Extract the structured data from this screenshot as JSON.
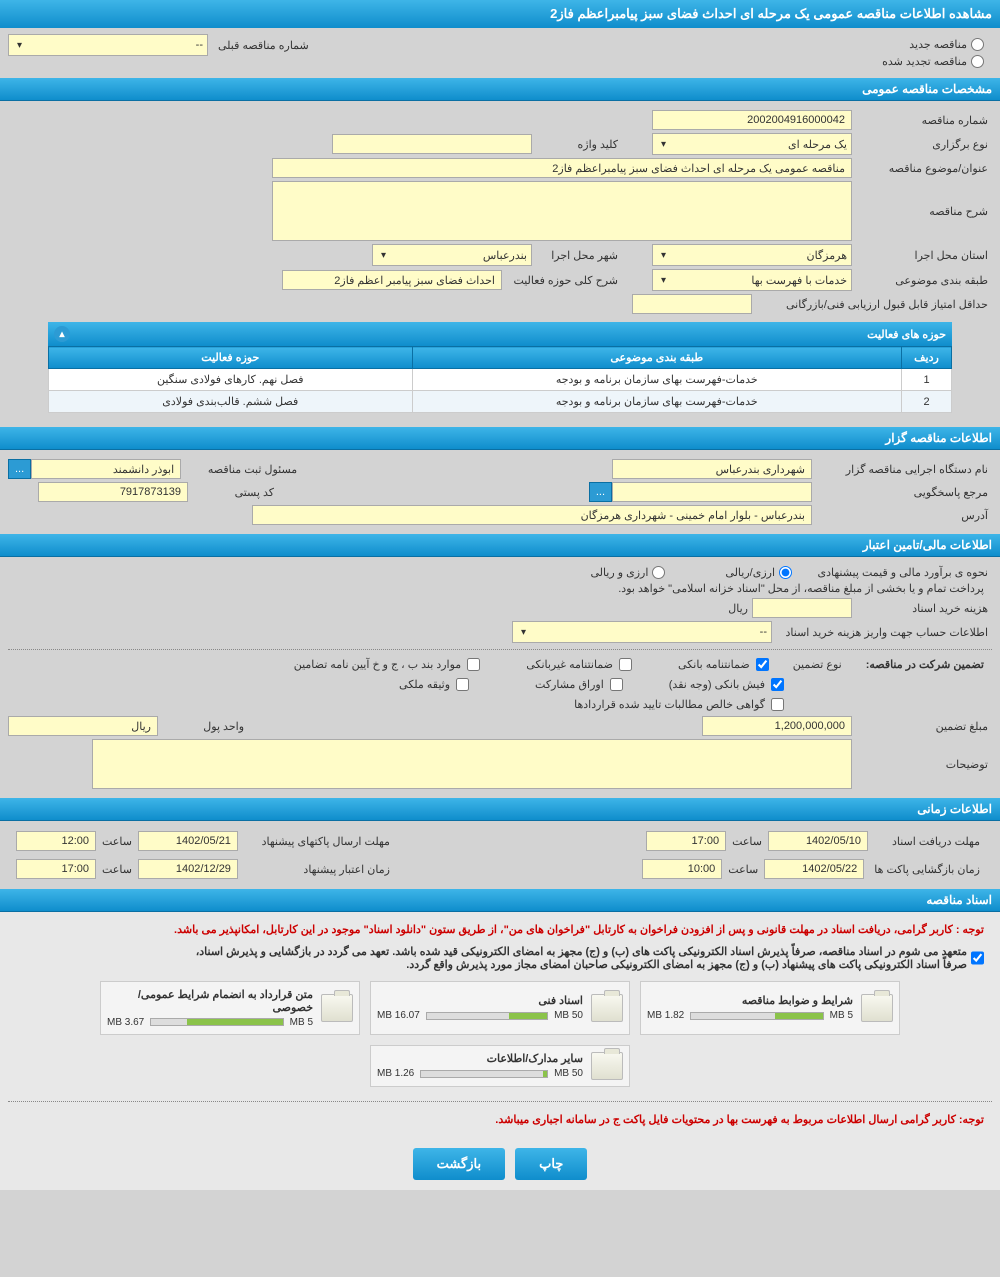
{
  "page_title": "مشاهده اطلاعات مناقصه عمومی یک مرحله ای احداث فضای سبز پیامبراعظم فاز2",
  "radio": {
    "new": "مناقصه جدید",
    "renewed": "مناقصه تجدید شده"
  },
  "prev_num_label": "شماره مناقصه قبلی",
  "prev_num_value": "--",
  "sections": {
    "general": "مشخصات مناقصه عمومی",
    "organizer": "اطلاعات مناقصه گزار",
    "financial": "اطلاعات مالی/تامین اعتبار",
    "time": "اطلاعات زمانی",
    "docs": "اسناد مناقصه"
  },
  "general": {
    "tender_no_label": "شماره مناقصه",
    "tender_no": "2002004916000042",
    "hold_type_label": "نوع برگزاری",
    "hold_type": "یک مرحله ای",
    "keyword_label": "کلید واژه",
    "keyword": "",
    "title_label": "عنوان/موضوع مناقصه",
    "title": "مناقصه عمومی یک مرحله ای احداث فضای سبز پیامبراعظم فاز2",
    "desc_label": "شرح مناقصه",
    "desc": "",
    "province_label": "استان محل اجرا",
    "province": "هرمزگان",
    "city_label": "شهر محل اجرا",
    "city": "بندرعباس",
    "category_label": "طبقه بندی موضوعی",
    "category": "خدمات با فهرست بها",
    "activity_desc_label": "شرح کلی حوزه فعالیت",
    "activity_desc": "احداث فضای سبز پیامبر اعظم فاز2",
    "min_score_label": "حداقل امتیاز قابل قبول ارزیابی فنی/بازرگانی",
    "min_score": ""
  },
  "activity_table": {
    "title": "حوزه های فعالیت",
    "cols": [
      "ردیف",
      "طبقه بندی موضوعی",
      "حوزه فعالیت"
    ],
    "rows": [
      [
        "1",
        "خدمات-فهرست بهای سازمان برنامه و بودجه",
        "فصل نهم. کارهای فولادی سنگین"
      ],
      [
        "2",
        "خدمات-فهرست بهای سازمان برنامه و بودجه",
        "فصل ششم. قالب‌بندی فولادی"
      ]
    ]
  },
  "organizer": {
    "name_label": "نام دستگاه اجرایی مناقصه گزار",
    "name": "شهرداری بندرعباس",
    "registrar_label": "مسئول ثبت مناقصه",
    "registrar": "ابوذر دانشمند",
    "more_btn": "...",
    "responder_label": "مرجع پاسخگویی",
    "responder": "",
    "responder_btn": "...",
    "postal_label": "کد پستی",
    "postal": "7917873139",
    "address_label": "آدرس",
    "address": "بندرعباس - بلوار امام خمینی - شهرداری هرمزگان"
  },
  "financial": {
    "estimate_label": "نحوه ی برآورد مالی و قیمت پیشنهادی",
    "opt_ar": "ارزی/ریالی",
    "opt_r": "ارزی و ریالی",
    "note": "پرداخت تمام و یا بخشی از مبلغ مناقصه، از محل \"اسناد خزانه اسلامی\" خواهد بود.",
    "cost_label": "هزینه خرید اسناد",
    "cost_unit": "ریال",
    "account_label": "اطلاعات حساب جهت واریز هزینه خرید اسناد",
    "account_value": "--",
    "guarantee_label": "تضمین شرکت در مناقصه:",
    "guarantee_type_label": "نوع تضمین",
    "cb_bank": "ضمانتنامه بانکی",
    "cb_nonbank": "ضمانتنامه غیربانکی",
    "cb_bhj": "موارد بند ب ، ج و خ آیین نامه تضامین",
    "cb_cash": "فیش بانکی (وجه نقد)",
    "cb_bonds": "اوراق مشارکت",
    "cb_property": "وثیقه ملکی",
    "cb_claims": "گواهی خالص مطالبات تایید شده قراردادها",
    "amount_label": "مبلغ تضمین",
    "amount": "1,200,000,000",
    "currency_label": "واحد پول",
    "currency": "ریال",
    "notes_label": "توضیحات"
  },
  "time": {
    "deadline_label": "مهلت دریافت اسناد",
    "deadline_date": "1402/05/10",
    "deadline_time_label": "ساعت",
    "deadline_time": "17:00",
    "submit_label": "مهلت ارسال پاکتهای پیشنهاد",
    "submit_date": "1402/05/21",
    "submit_time": "12:00",
    "open_label": "زمان بازگشایی پاکت ها",
    "open_date": "1402/05/22",
    "open_time": "10:00",
    "validity_label": "زمان اعتبار پیشنهاد",
    "validity_date": "1402/12/29",
    "validity_time": "17:00"
  },
  "docs": {
    "warning1": "توجه : کاربر گرامی، دریافت اسناد در مهلت قانونی و پس از افزودن فراخوان به کارتابل \"فراخوان های من\"، از طریق ستون \"دانلود اسناد\" موجود در این کارتابل، امکانپذیر می باشد.",
    "warning2a": "متعهد می شوم در اسناد مناقصه، صرفاً پذیرش اسناد الکترونیکی پاکت های (ب) و (ج) مجهز به امضای الکترونیکی قید شده باشد. تعهد می گردد در بازگشایی و پذیرش اسناد،",
    "warning2b": "صرفاً اسناد الکترونیکی پاکت های پیشنهاد (ب) و (ج) مجهز به امضای الکترونیکی صاحبان امضای مجاز مورد پذیرش واقع گردد.",
    "items": [
      {
        "title": "شرایط و ضوابط مناقصه",
        "used": "1.82 MB",
        "total": "5 MB",
        "pct": 36
      },
      {
        "title": "اسناد فنی",
        "used": "16.07 MB",
        "total": "50 MB",
        "pct": 32
      },
      {
        "title": "متن قرارداد به انضمام شرایط عمومی/خصوصی",
        "used": "3.67 MB",
        "total": "5 MB",
        "pct": 73
      },
      {
        "title": "سایر مدارک/اطلاعات",
        "used": "1.26 MB",
        "total": "50 MB",
        "pct": 3
      }
    ],
    "bottom_warning": "توجه: کاربر گرامی ارسال اطلاعات مربوط به فهرست بها در محتویات فایل پاکت ج در سامانه اجباری میباشد."
  },
  "buttons": {
    "print": "چاپ",
    "back": "بازگشت"
  },
  "colors": {
    "header_grad_top": "#3eb5e8",
    "header_grad_bottom": "#0f8dcc",
    "field_bg": "#fffcc8",
    "body_bg": "#d3d3d3",
    "red": "#cc0000",
    "green_bar": "#8bc34a"
  }
}
